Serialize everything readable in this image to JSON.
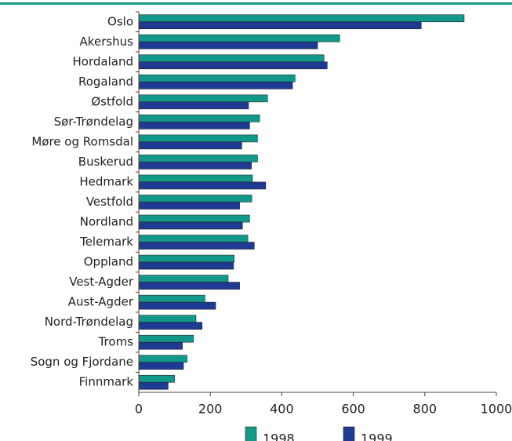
{
  "chart_data": {
    "type": "hbar",
    "categories": [
      "Oslo",
      "Akershus",
      "Hordaland",
      "Rogaland",
      "Østfold",
      "Sør-Trøndelag",
      "Møre og Romsdal",
      "Buskerud",
      "Hedmark",
      "Vestfold",
      "Nordland",
      "Telemark",
      "Oppland",
      "Vest-Agder",
      "Aust-Agder",
      "Nord-Trøndelag",
      "Troms",
      "Sogn og Fjordane",
      "Finnmark"
    ],
    "series": [
      {
        "name": "1998",
        "color": "#12998a",
        "values": [
          910,
          562,
          518,
          437,
          360,
          338,
          332,
          332,
          318,
          316,
          310,
          305,
          267,
          250,
          185,
          160,
          153,
          135,
          100
        ]
      },
      {
        "name": "1999",
        "color": "#1f3a93",
        "values": [
          790,
          500,
          527,
          430,
          307,
          310,
          288,
          315,
          355,
          282,
          290,
          323,
          265,
          282,
          215,
          177,
          122,
          125,
          82
        ]
      }
    ],
    "xlim": [
      0,
      1000
    ],
    "xticks": [
      0,
      200,
      400,
      600,
      800,
      1000
    ],
    "legend": "bottom"
  }
}
